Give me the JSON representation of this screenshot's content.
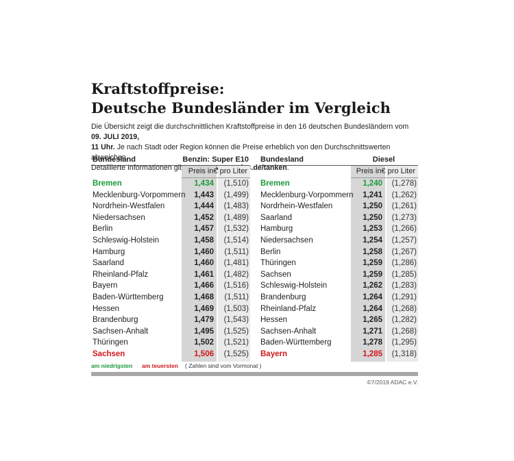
{
  "header": {
    "title_line1": "Kraftstoffpreise:",
    "title_line2": "Deutsche Bundesländer im Vergleich",
    "intro": [
      "Die Übersicht zeigt die durchschnittlichen Kraftstoffpreise in den 16 deutschen Bundesländern vom ",
      "09. JULI 2019,",
      "11 Uhr.",
      "Je nach Stadt oder Region können die Preise erheblich von den Durchschnittswerten abweichen.",
      "Detaillierte Informationen gibt es unter ",
      "www.adac.de/tanken",
      "."
    ]
  },
  "tables": [
    {
      "col_name": "Bundesland",
      "col_fuel": "Benzin: Super E10",
      "unit": "Preis in€ pro Liter",
      "rows": [
        [
          "Bremen",
          "1,434",
          "(1,510)"
        ],
        [
          "Mecklenburg-Vorpommern",
          "1,443",
          "(1,499)"
        ],
        [
          "Nordrhein-Westfalen",
          "1,444",
          "(1,483)"
        ],
        [
          "Niedersachsen",
          "1,452",
          "(1,489)"
        ],
        [
          "Berlin",
          "1,457",
          "(1,532)"
        ],
        [
          "Schleswig-Holstein",
          "1,458",
          "(1,514)"
        ],
        [
          "Hamburg",
          "1,460",
          "(1,511)"
        ],
        [
          "Saarland",
          "1,460",
          "(1,481)"
        ],
        [
          "Rheinland-Pfalz",
          "1,461",
          "(1,482)"
        ],
        [
          "Bayern",
          "1,466",
          "(1,516)"
        ],
        [
          "Baden-Württemberg",
          "1,468",
          "(1,511)"
        ],
        [
          "Hessen",
          "1,469",
          "(1,503)"
        ],
        [
          "Brandenburg",
          "1,479",
          "(1,543)"
        ],
        [
          "Sachsen-Anhalt",
          "1,495",
          "(1,525)"
        ],
        [
          "Thüringen",
          "1,502",
          "(1,521)"
        ],
        [
          "Sachsen",
          "1,506",
          "(1,525)"
        ]
      ]
    },
    {
      "col_name": "Bundesland",
      "col_fuel": "Diesel",
      "unit": "Preis in€ pro Liter",
      "rows": [
        [
          "Bremen",
          "1,240",
          "(1,278)"
        ],
        [
          "Mecklenburg-Vorpommern",
          "1,241",
          "(1,262)"
        ],
        [
          "Nordrhein-Westfalen",
          "1,250",
          "(1,261)"
        ],
        [
          "Saarland",
          "1,250",
          "(1,273)"
        ],
        [
          "Hamburg",
          "1,253",
          "(1,266)"
        ],
        [
          "Niedersachsen",
          "1,254",
          "(1,257)"
        ],
        [
          "Berlin",
          "1,258",
          "(1,267)"
        ],
        [
          "Thüringen",
          "1,259",
          "(1,286)"
        ],
        [
          "Sachsen",
          "1,259",
          "(1,285)"
        ],
        [
          "Schleswig-Holstein",
          "1,262",
          "(1,283)"
        ],
        [
          "Brandenburg",
          "1,264",
          "(1,291)"
        ],
        [
          "Rheinland-Pfalz",
          "1,264",
          "(1,268)"
        ],
        [
          "Hessen",
          "1,265",
          "(1,282)"
        ],
        [
          "Sachsen-Anhalt",
          "1,271",
          "(1,268)"
        ],
        [
          "Baden-Württemberg",
          "1,278",
          "(1,295)"
        ],
        [
          "Bayern",
          "1,285",
          "(1,318)"
        ]
      ]
    }
  ],
  "legend": {
    "lowest": "am niedrigsten",
    "highest": "am teuersten",
    "note": "( Zahlen sind vom Vormonat )"
  },
  "footer": {
    "copyright": "©7/2019 ADAC e.V."
  }
}
